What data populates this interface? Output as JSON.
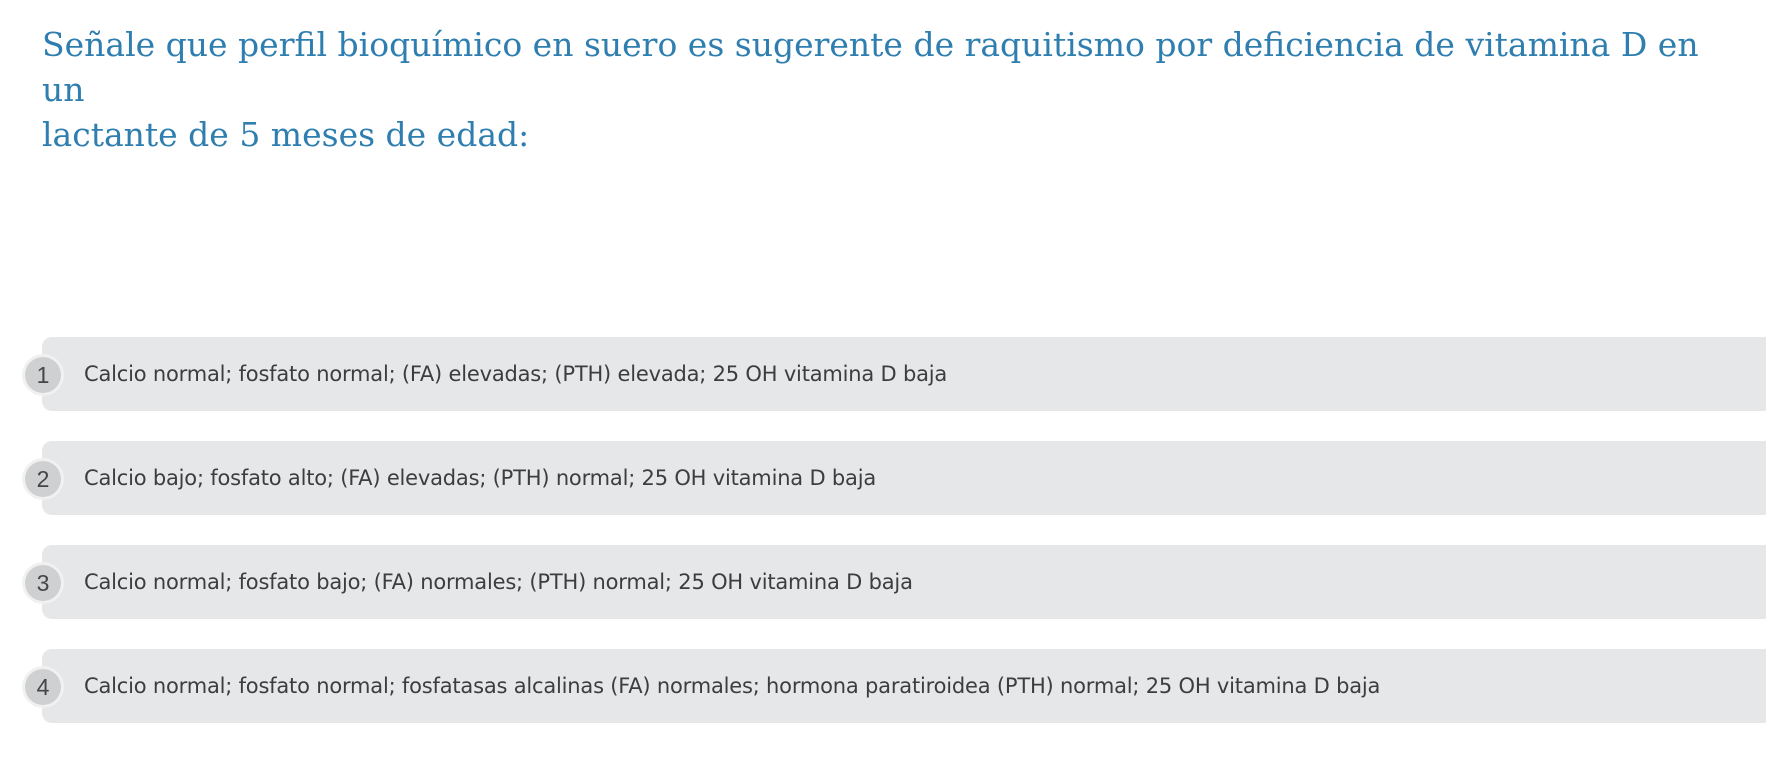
{
  "question": {
    "text": "Señale que perfil bioquímico en suero es sugerente de raquitismo por deficiencia de vitamina D en un\nlactante de 5 meses de edad:"
  },
  "options": [
    {
      "number": "1",
      "label": "Calcio normal; fosfato normal; (FA) elevadas; (PTH) elevada; 25 OH vitamina D baja"
    },
    {
      "number": "2",
      "label": "Calcio bajo; fosfato alto; (FA) elevadas; (PTH) normal; 25 OH vitamina D baja"
    },
    {
      "number": "3",
      "label": "Calcio normal; fosfato bajo; (FA) normales; (PTH) normal; 25 OH vitamina D baja"
    },
    {
      "number": "4",
      "label": "Calcio normal; fosfato normal; fosfatasas alcalinas (FA) normales; hormona paratiroidea (PTH) normal; 25 OH vitamina D baja"
    }
  ],
  "colors": {
    "question_text": "#2f7eb0",
    "option_background": "#e6e7e9",
    "option_number_background": "#cfd0d2",
    "option_text": "#3d3d3d"
  }
}
